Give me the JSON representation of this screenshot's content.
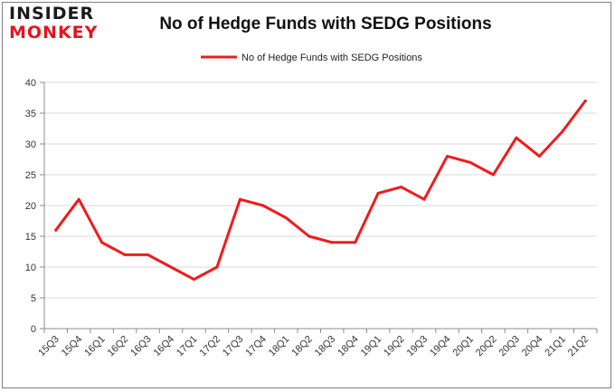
{
  "brand": {
    "line1": "INSIDER",
    "line2": "MONKEY"
  },
  "chart_data": {
    "type": "line",
    "title": "No of Hedge Funds with SEDG Positions",
    "categories": [
      "15Q3",
      "15Q4",
      "16Q1",
      "16Q2",
      "16Q3",
      "16Q4",
      "17Q1",
      "17Q2",
      "17Q3",
      "17Q4",
      "18Q1",
      "18Q2",
      "18Q3",
      "18Q4",
      "19Q1",
      "19Q2",
      "19Q3",
      "19Q4",
      "20Q1",
      "20Q2",
      "20Q3",
      "20Q4",
      "21Q1",
      "21Q2"
    ],
    "series": [
      {
        "name": "No of Hedge Funds with SEDG Positions",
        "values": [
          16,
          21,
          14,
          12,
          12,
          10,
          8,
          10,
          21,
          20,
          18,
          15,
          14,
          14,
          22,
          23,
          21,
          28,
          27,
          25,
          31,
          28,
          32,
          37
        ],
        "color": "#ee1c1c"
      }
    ],
    "ylim": [
      0,
      40
    ],
    "yticks": [
      0,
      5,
      10,
      15,
      20,
      25,
      30,
      35,
      40
    ],
    "grid": "horizontal",
    "legend": "top-center",
    "xlabel": "",
    "ylabel": ""
  }
}
